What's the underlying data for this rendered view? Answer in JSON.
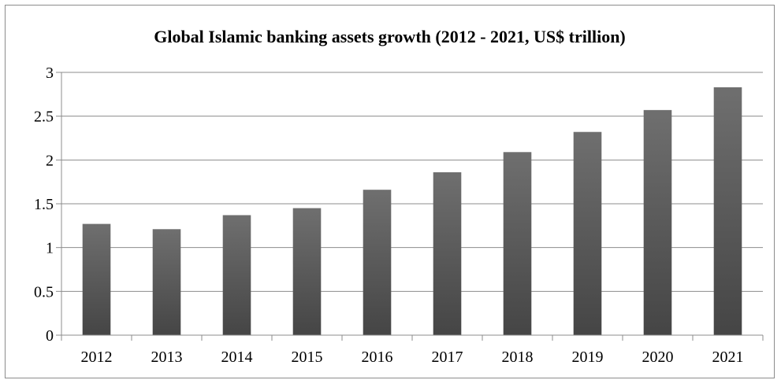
{
  "chart_data": {
    "type": "bar",
    "title": "Global Islamic banking assets growth (2012 - 2021, US$ trillion)",
    "categories": [
      "2012",
      "2013",
      "2014",
      "2015",
      "2016",
      "2017",
      "2018",
      "2019",
      "2020",
      "2021"
    ],
    "values": [
      1.27,
      1.21,
      1.37,
      1.45,
      1.66,
      1.86,
      2.09,
      2.32,
      2.57,
      2.83
    ],
    "ylim": [
      0,
      3
    ],
    "yticks": [
      "0",
      "0.5",
      "1",
      "1.5",
      "2",
      "2.5",
      "3"
    ],
    "grid": true,
    "legend": "none",
    "colors": {
      "bar_top": "#6f6f6f",
      "bar_bottom": "#454545",
      "grid": "#8c8c8c",
      "axis": "#8c8c8c"
    }
  }
}
